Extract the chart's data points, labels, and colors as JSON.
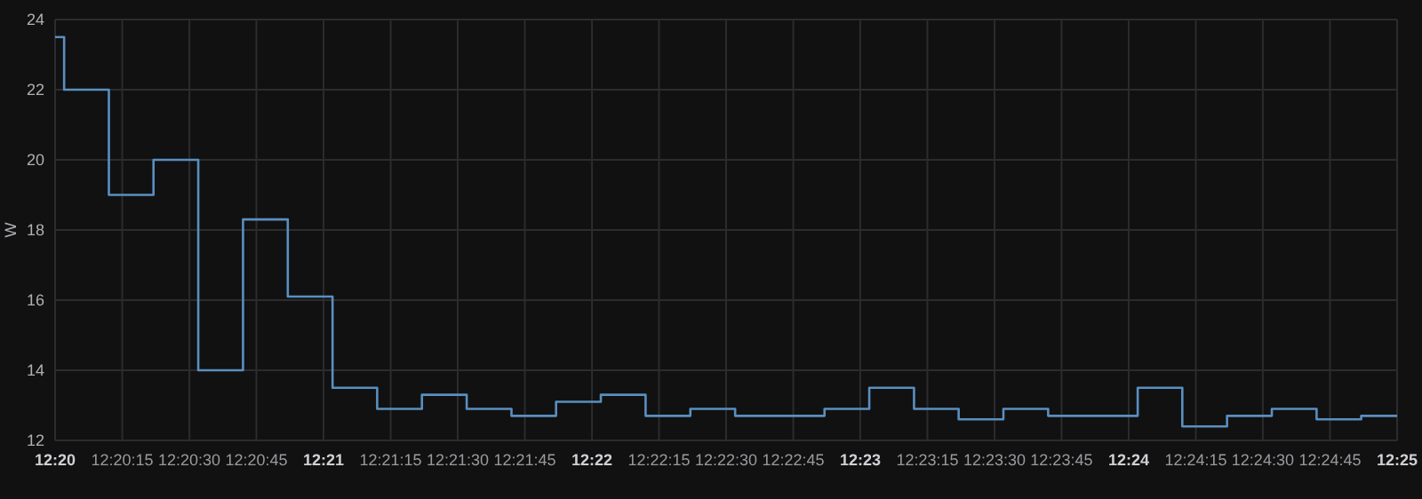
{
  "chart_data": {
    "type": "step",
    "ylabel": "W",
    "x": [
      12.33333,
      12.33389,
      12.33667,
      12.33944,
      12.34222,
      12.345,
      12.34778,
      12.35056,
      12.35333,
      12.35611,
      12.35889,
      12.36167,
      12.36444,
      12.36722,
      12.37,
      12.37278,
      12.37556,
      12.37833,
      12.38111,
      12.38389,
      12.38667,
      12.38944,
      12.39222,
      12.395,
      12.39778,
      12.40056,
      12.40333,
      12.40611,
      12.40889,
      12.41167,
      12.41444,
      12.41667
    ],
    "series": [
      {
        "color": "#5a8fbf",
        "values": [
          23.5,
          22,
          19,
          20,
          14,
          18.3,
          16.1,
          13.5,
          12.9,
          13.3,
          12.9,
          12.7,
          13.1,
          13.3,
          12.7,
          12.9,
          12.7,
          12.7,
          12.9,
          13.5,
          12.9,
          12.6,
          12.9,
          12.7,
          12.7,
          13.5,
          12.4,
          12.7,
          12.9,
          12.6,
          12.7,
          12.7
        ]
      }
    ],
    "xlim": [
      12.33333,
      12.41667
    ],
    "ylim": [
      12,
      24
    ],
    "yticks": [
      12,
      14,
      16,
      18,
      20,
      22,
      24
    ],
    "xticks": [
      {
        "value": 12.33333,
        "label": "12:20"
      },
      {
        "value": 12.3375,
        "label": "12:20:15"
      },
      {
        "value": 12.34167,
        "label": "12:20:30"
      },
      {
        "value": 12.34583,
        "label": "12:20:45"
      },
      {
        "value": 12.35,
        "label": "12:21"
      },
      {
        "value": 12.35417,
        "label": "12:21:15"
      },
      {
        "value": 12.35833,
        "label": "12:21:30"
      },
      {
        "value": 12.3625,
        "label": "12:21:45"
      },
      {
        "value": 12.36667,
        "label": "12:22"
      },
      {
        "value": 12.37083,
        "label": "12:22:15"
      },
      {
        "value": 12.375,
        "label": "12:22:30"
      },
      {
        "value": 12.37917,
        "label": "12:22:45"
      },
      {
        "value": 12.38333,
        "label": "12:23"
      },
      {
        "value": 12.3875,
        "label": "12:23:15"
      },
      {
        "value": 12.39167,
        "label": "12:23:30"
      },
      {
        "value": 12.39583,
        "label": "12:23:45"
      },
      {
        "value": 12.4,
        "label": "12:24"
      },
      {
        "value": 12.40417,
        "label": "12:24:15"
      },
      {
        "value": 12.40833,
        "label": "12:24:30"
      },
      {
        "value": 12.4125,
        "label": "12:24:45"
      },
      {
        "value": 12.41667,
        "label": "12:25"
      }
    ],
    "grid": true
  }
}
